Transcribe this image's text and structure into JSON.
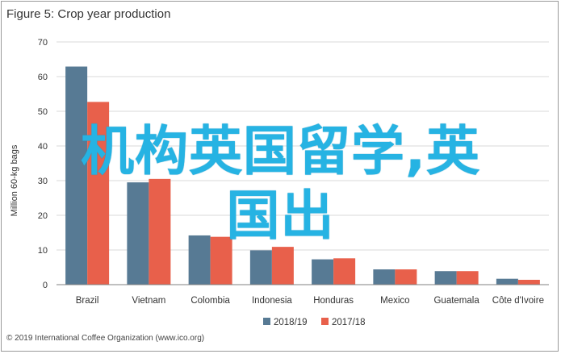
{
  "title": "Figure 5: Crop year production",
  "copyright": "© 2019 International Coffee Organization (www.ico.org)",
  "overlay": {
    "line1": "机构英国留学,英",
    "line2": "国出"
  },
  "colors": {
    "s1": "#577a94",
    "s2": "#e8604b",
    "grid": "#d9d9d9",
    "axis": "#808080",
    "text": "#333333"
  },
  "chart_data": {
    "type": "bar",
    "title": "Figure 5: Crop year production",
    "ylabel": "Million 60-kg bags",
    "xlabel": "",
    "ylim": [
      0,
      70
    ],
    "yticks": [
      0,
      10,
      20,
      30,
      40,
      50,
      60,
      70
    ],
    "grid": true,
    "legend": "bottom",
    "categories": [
      "Brazil",
      "Vietnam",
      "Colombia",
      "Indonesia",
      "Honduras",
      "Mexico",
      "Guatemala",
      "Côte d'Ivoire"
    ],
    "series": [
      {
        "name": "2018/19",
        "values": [
          62.9,
          29.5,
          14.2,
          9.9,
          7.3,
          4.4,
          3.9,
          1.7
        ]
      },
      {
        "name": "2017/18",
        "values": [
          52.7,
          30.5,
          13.8,
          10.9,
          7.6,
          4.4,
          3.9,
          1.4
        ]
      }
    ]
  }
}
